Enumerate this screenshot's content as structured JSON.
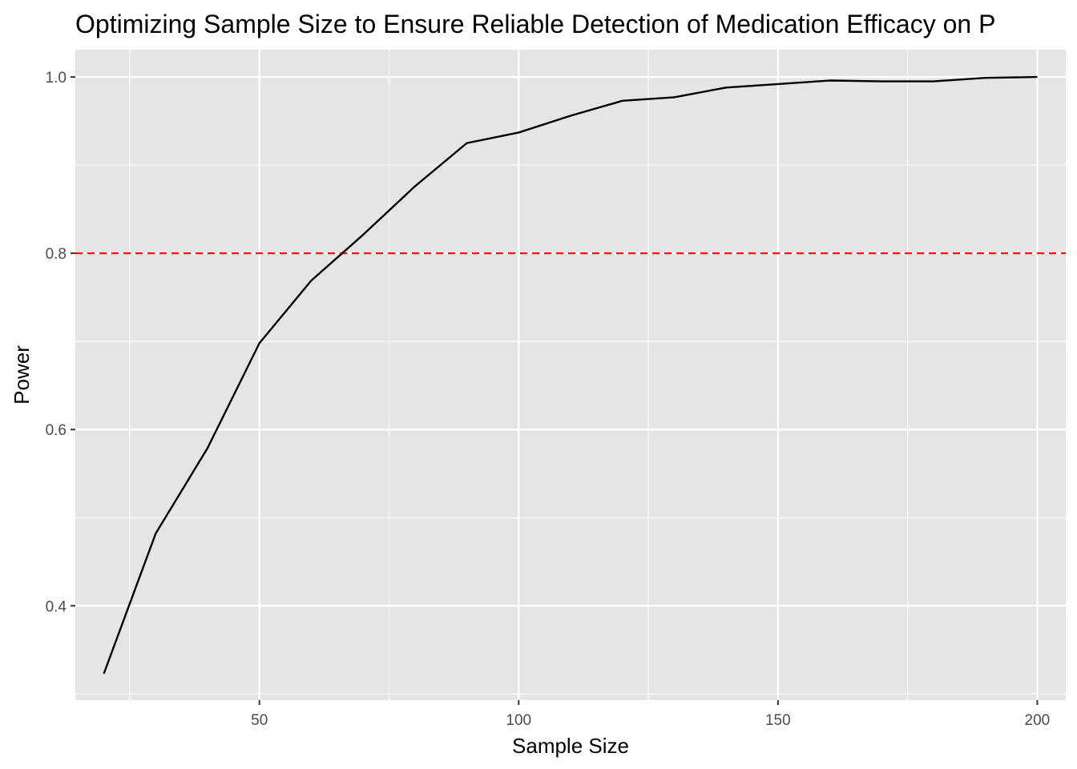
{
  "chart_data": {
    "type": "line",
    "title": "Optimizing Sample Size to Ensure Reliable Detection of Medication Efficacy on P",
    "xlabel": "Sample Size",
    "ylabel": "Power",
    "xlim": [
      14.5,
      205.5
    ],
    "ylim": [
      0.293,
      1.031
    ],
    "x_ticks": [
      50,
      100,
      150,
      200
    ],
    "x_minor_ticks": [
      25,
      75,
      125,
      175
    ],
    "y_ticks": [
      0.4,
      0.6,
      0.8,
      1.0
    ],
    "y_minor_ticks": [
      0.3,
      0.5,
      0.7,
      0.9
    ],
    "x_tick_labels": [
      "50",
      "100",
      "150",
      "200"
    ],
    "y_tick_labels": [
      "0.4",
      "0.6",
      "0.8",
      "1.0"
    ],
    "grid": true,
    "series": [
      {
        "x": [
          20,
          30,
          40,
          50,
          60,
          70,
          80,
          90,
          100,
          110,
          120,
          130,
          140,
          150,
          160,
          170,
          180,
          190,
          200
        ],
        "y": [
          0.323,
          0.482,
          0.579,
          0.698,
          0.769,
          0.821,
          0.876,
          0.925,
          0.937,
          0.956,
          0.973,
          0.977,
          0.988,
          0.992,
          0.996,
          0.995,
          0.995,
          0.999,
          1.0
        ]
      }
    ],
    "reference_line": {
      "orientation": "horizontal",
      "y": 0.8,
      "style": "dashed",
      "color": "#ff0000"
    },
    "colors": {
      "panel_background": "#e5e5e5",
      "grid": "#ffffff",
      "line": "#000000"
    }
  }
}
